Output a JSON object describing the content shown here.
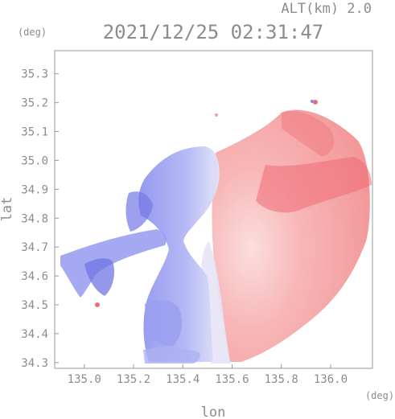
{
  "chart_data": {
    "type": "heatmap",
    "title": "2021/12/25 02:31:47",
    "altitude_label": "ALT(km) 2.0",
    "xlabel": "lon",
    "ylabel": "lat",
    "x_unit": "(deg)",
    "y_unit": "(deg)",
    "xlim": [
      134.88,
      136.17
    ],
    "ylim": [
      34.28,
      35.38
    ],
    "x_ticks": [
      "135.0",
      "135.2",
      "135.4",
      "135.6",
      "135.8",
      "136.0"
    ],
    "y_ticks": [
      "34.3",
      "34.4",
      "34.5",
      "34.6",
      "34.7",
      "34.8",
      "34.9",
      "35.0",
      "35.1",
      "35.2",
      "35.3"
    ],
    "grid": false,
    "colors": {
      "positive": "#f28b8b",
      "positive_strong": "#ee5f6a",
      "negative": "#9aa0f0",
      "negative_strong": "#6e74e6",
      "near_zero": "#e4e4f8"
    }
  }
}
